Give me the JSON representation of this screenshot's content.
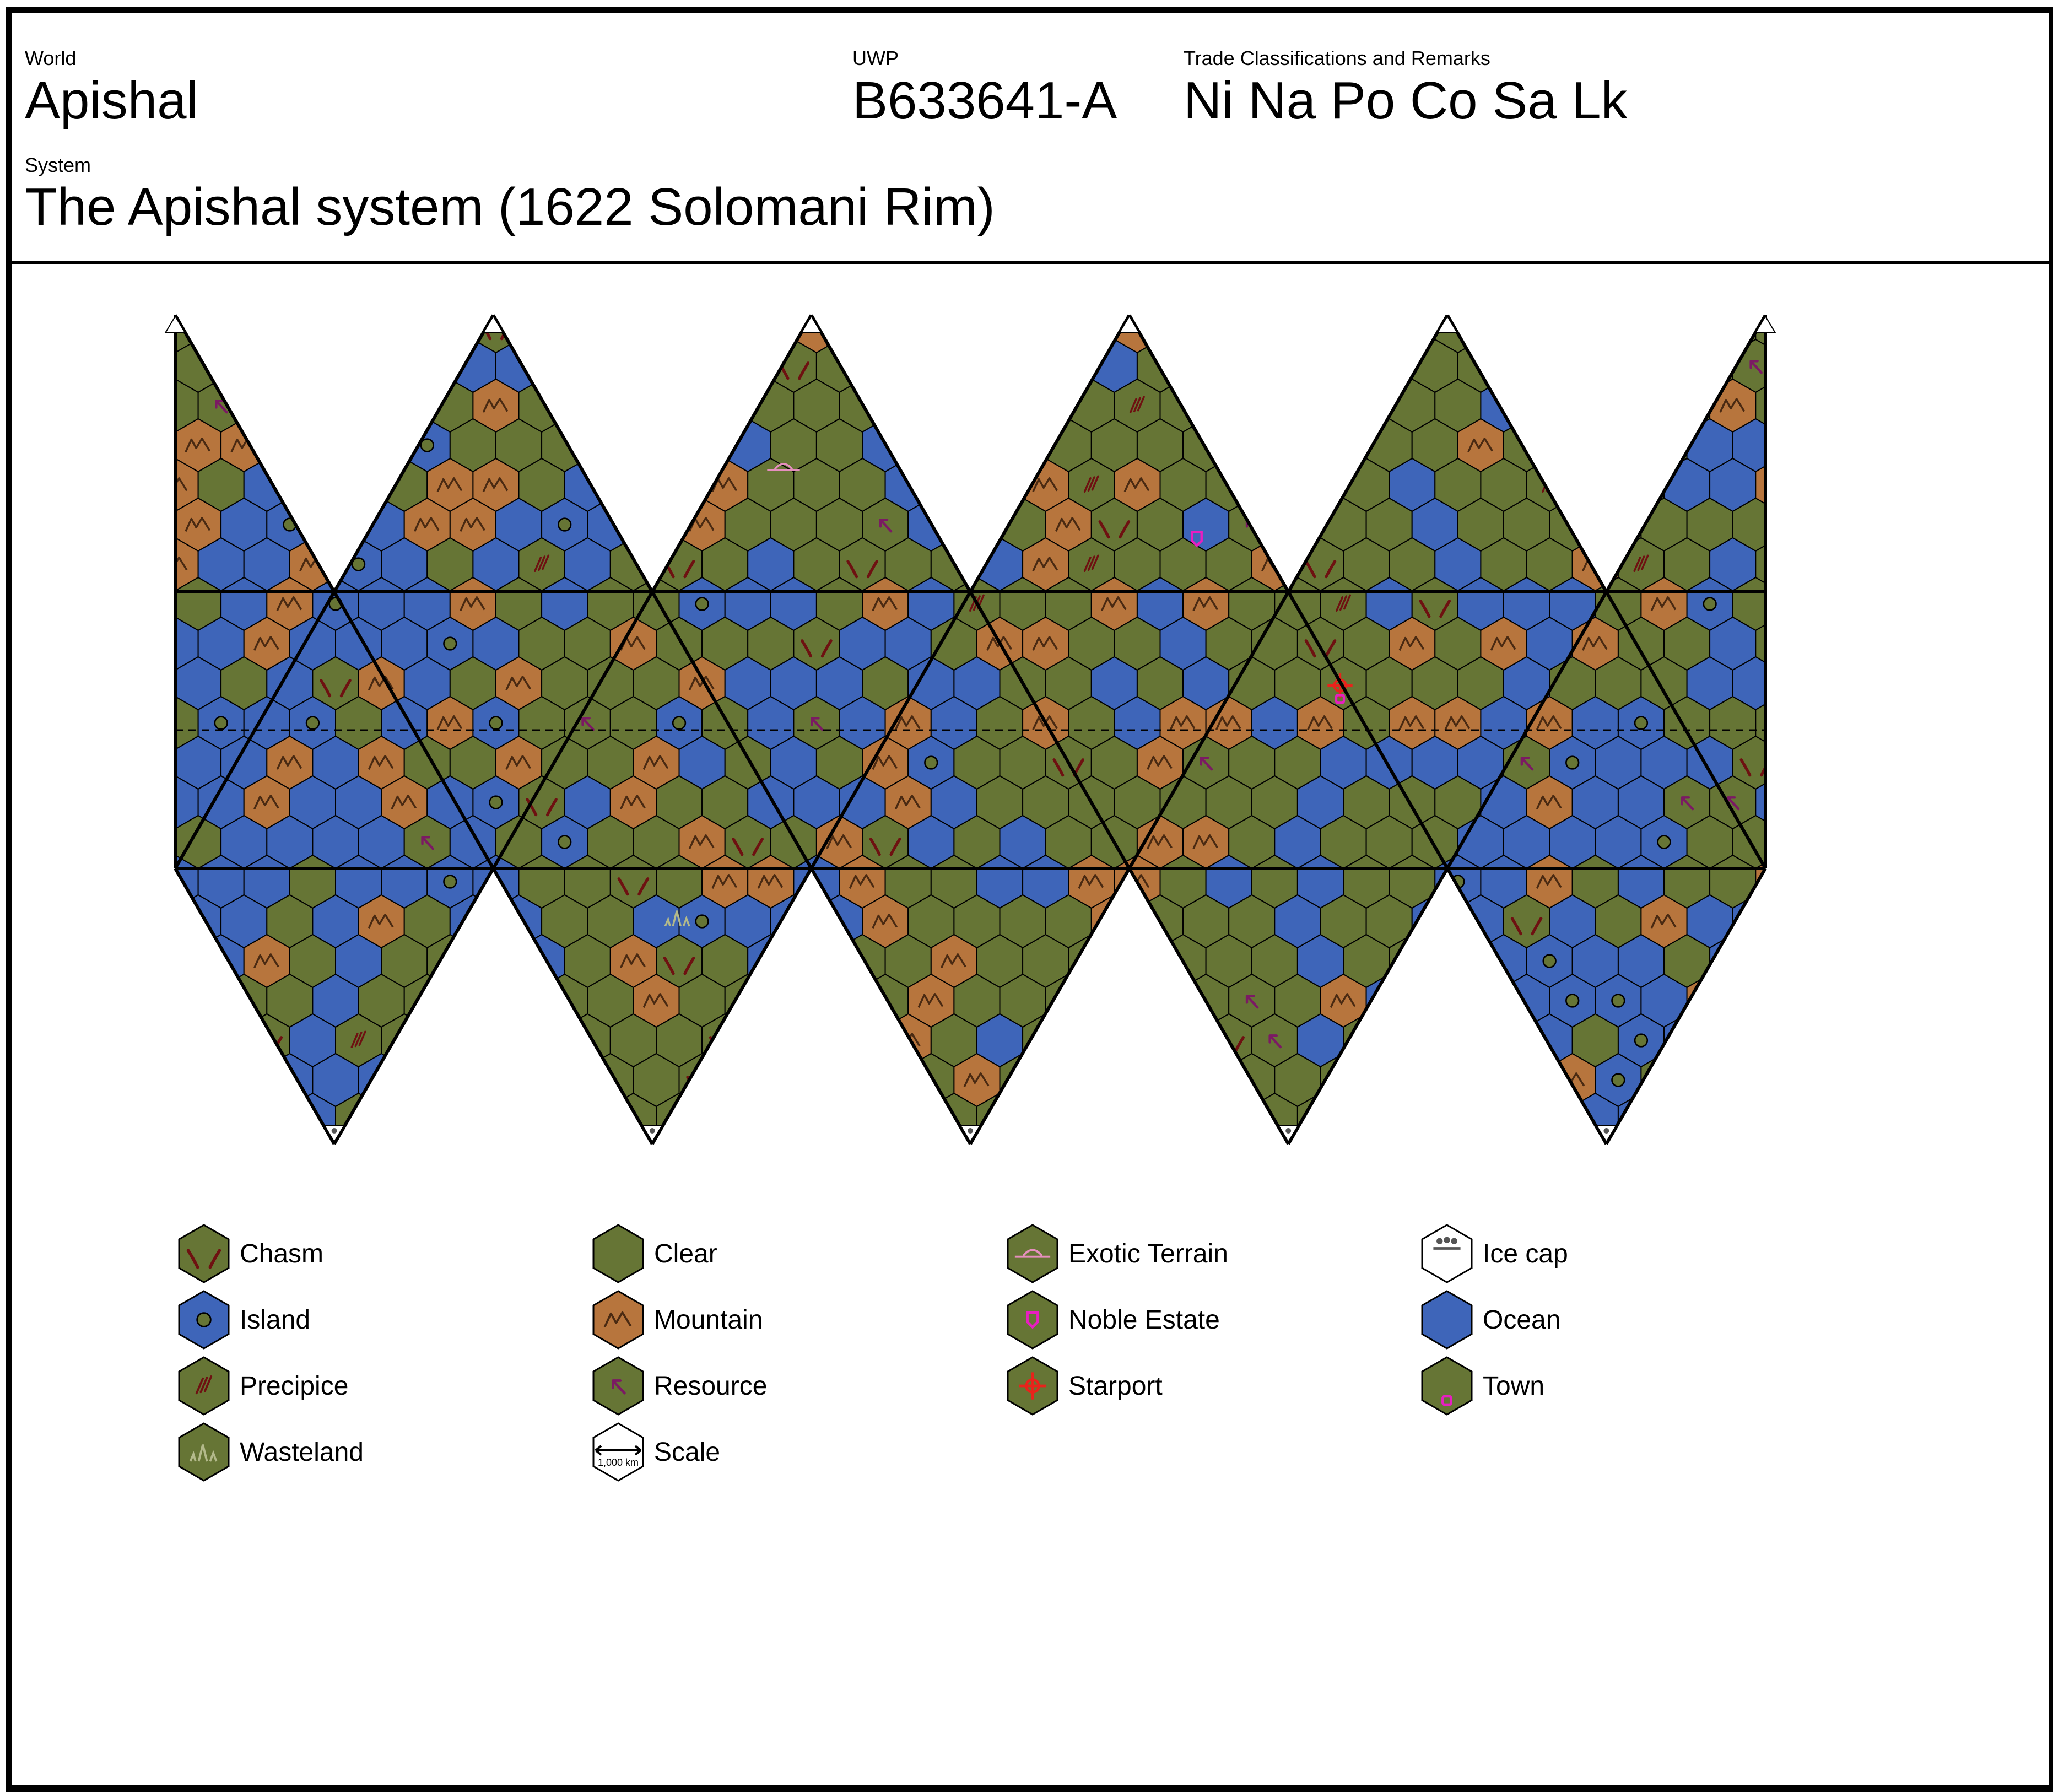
{
  "header": {
    "world_label": "World",
    "world_name": "Apishal",
    "uwp_label": "UWP",
    "uwp_value": "B633641-A",
    "trade_label": "Trade Classifications and Remarks",
    "trade_value": "Ni Na Po Co Sa Lk",
    "system_label": "System",
    "system_value": "The Apishal system (1622 Solomani Rim)"
  },
  "colors": {
    "clear": "#667535",
    "ocean": "#3e65b9",
    "mountain": "#b7753d",
    "ice": "#ffffff",
    "chasm_mark": "#6e1111",
    "resource_mark": "#7b1a63",
    "noble_mark": "#e81ec1",
    "starport_mark": "#e8231b",
    "exotic_mark": "#e68fbe",
    "wasteland_mark": "#b3b98b",
    "grid_line": "#000000"
  },
  "legend": [
    {
      "key": "chasm",
      "label": "Chasm",
      "icon": "chasm-icon"
    },
    {
      "key": "clear",
      "label": "Clear",
      "icon": "clear-icon"
    },
    {
      "key": "exotic",
      "label": "Exotic Terrain",
      "icon": "exotic-terrain-icon"
    },
    {
      "key": "ice",
      "label": "Ice cap",
      "icon": "ice-cap-icon"
    },
    {
      "key": "island",
      "label": "Island",
      "icon": "island-icon"
    },
    {
      "key": "mountain",
      "label": "Mountain",
      "icon": "mountain-icon"
    },
    {
      "key": "noble",
      "label": "Noble Estate",
      "icon": "noble-estate-icon"
    },
    {
      "key": "ocean",
      "label": "Ocean",
      "icon": "ocean-icon"
    },
    {
      "key": "precipice",
      "label": "Precipice",
      "icon": "precipice-icon"
    },
    {
      "key": "resource",
      "label": "Resource",
      "icon": "resource-icon"
    },
    {
      "key": "starport",
      "label": "Starport",
      "icon": "starport-icon"
    },
    {
      "key": "town",
      "label": "Town",
      "icon": "town-icon"
    },
    {
      "key": "wasteland",
      "label": "Wasteland",
      "icon": "wasteland-icon"
    },
    {
      "key": "scale",
      "label": "Scale",
      "icon": "scale-icon",
      "scale_text": "1,000 km"
    }
  ]
}
